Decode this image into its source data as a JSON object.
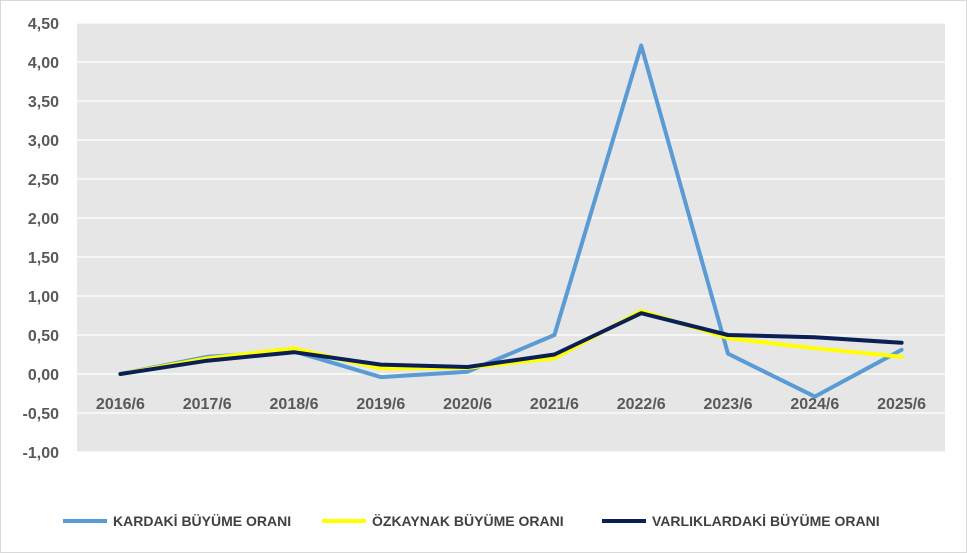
{
  "chart_data": {
    "type": "line",
    "categories": [
      "2016/6",
      "2017/6",
      "2018/6",
      "2019/6",
      "2020/6",
      "2021/6",
      "2022/6",
      "2023/6",
      "2024/6",
      "2025/6"
    ],
    "ylim": [
      -1.0,
      4.5
    ],
    "yticks": [
      "-1,00",
      "-0,50",
      "0,00",
      "0,50",
      "1,00",
      "1,50",
      "2,00",
      "2,50",
      "3,00",
      "3,50",
      "4,00",
      "4,50"
    ],
    "ytick_values": [
      -1.0,
      -0.5,
      0.0,
      0.5,
      1.0,
      1.5,
      2.0,
      2.5,
      3.0,
      3.5,
      4.0,
      4.5
    ],
    "grid": true,
    "legend_position": "bottom",
    "plot_background": "#e6e6e6",
    "series": [
      {
        "name": "KARDAKİ BÜYÜME ORANI",
        "color": "#5b9bd5",
        "values": [
          0.0,
          0.22,
          0.29,
          -0.04,
          0.03,
          0.5,
          4.21,
          0.26,
          -0.29,
          0.31
        ]
      },
      {
        "name": "ÖZKAYNAK BÜYÜME ORANI",
        "color": "#ffff00",
        "values": [
          0.0,
          0.2,
          0.33,
          0.07,
          0.08,
          0.2,
          0.81,
          0.46,
          0.33,
          0.22
        ]
      },
      {
        "name": "VARLIKLARDAKİ BÜYÜME ORANI",
        "color": "#0b1f57",
        "values": [
          0.0,
          0.17,
          0.28,
          0.12,
          0.09,
          0.25,
          0.78,
          0.5,
          0.47,
          0.4
        ]
      }
    ]
  }
}
